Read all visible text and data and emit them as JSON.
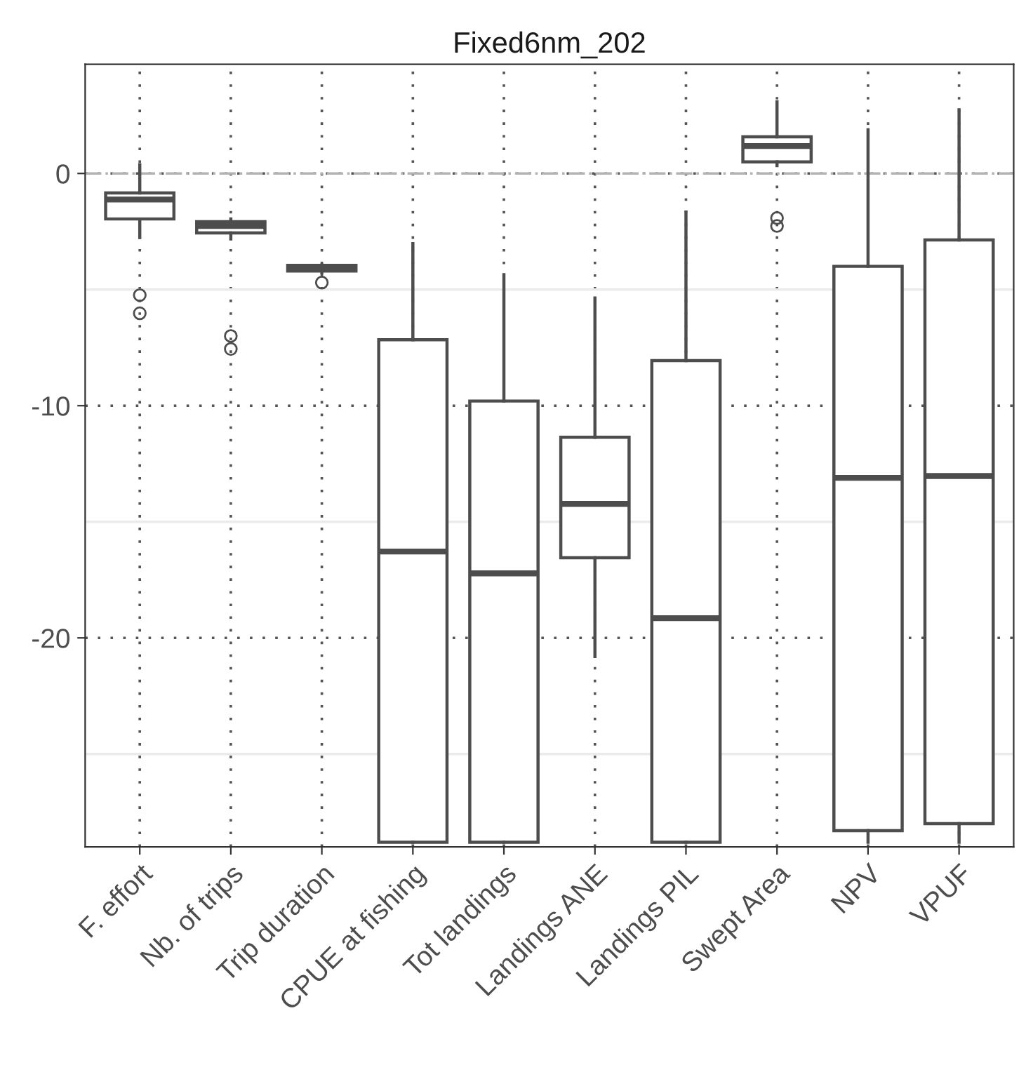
{
  "chart_data": {
    "type": "box",
    "title": "Fixed6nm_202",
    "categories": [
      "F. effort",
      "Nb. of trips",
      "Trip duration",
      "CPUE at fishing",
      "Tot landings",
      "Landings ANE",
      "Landings PIL",
      "Swept Area",
      "NPV",
      "VPUF"
    ],
    "boxes": [
      {
        "low": -2.76,
        "q1": -1.96,
        "median": -1.12,
        "q3": -0.84,
        "high": 0.38,
        "outliers": [
          -5.24,
          -6.02
        ]
      },
      {
        "low": -2.82,
        "q1": -2.56,
        "median": -2.26,
        "q3": -2.08,
        "high": -1.96,
        "outliers": [
          -7.0,
          -7.56
        ]
      },
      {
        "low": -4.28,
        "q1": -4.2,
        "median": -4.08,
        "q3": -3.96,
        "high": -3.94,
        "outliers": [
          -4.7
        ]
      },
      {
        "low": -28.8,
        "q1": -28.8,
        "median": -16.28,
        "q3": -7.16,
        "high": -3.02
      },
      {
        "low": -28.8,
        "q1": -28.8,
        "median": -17.22,
        "q3": -9.8,
        "high": -4.36
      },
      {
        "low": -20.8,
        "q1": -16.55,
        "median": -14.23,
        "q3": -11.36,
        "high": -5.36
      },
      {
        "low": -28.8,
        "q1": -28.8,
        "median": -19.15,
        "q3": -8.06,
        "high": -1.66
      },
      {
        "low": 0.34,
        "q1": 0.5,
        "median": 1.18,
        "q3": 1.58,
        "high": 3.08,
        "outliers": [
          -1.92,
          -2.26
        ]
      },
      {
        "low": -28.8,
        "q1": -28.3,
        "median": -13.11,
        "q3": -4.0,
        "high": 1.88
      },
      {
        "low": -28.8,
        "q1": -28.0,
        "median": -13.03,
        "q3": -2.86,
        "high": 2.74
      }
    ],
    "color": "#4d4d4d",
    "ylim": [
      -29.0,
      4.7
    ],
    "yticks": [
      0,
      -10,
      -20
    ],
    "grid": true,
    "ref_lines": [
      {
        "axis": "y",
        "value": 0,
        "color": "#b3b3b3",
        "line_style": "dashdot"
      },
      {
        "axis": "y",
        "value": -5,
        "color": "#ebebeb",
        "line_style": "solid"
      },
      {
        "axis": "y",
        "value": -15,
        "color": "#ebebeb",
        "line_style": "solid"
      },
      {
        "axis": "y",
        "value": -25,
        "color": "#ebebeb",
        "line_style": "solid"
      }
    ]
  }
}
